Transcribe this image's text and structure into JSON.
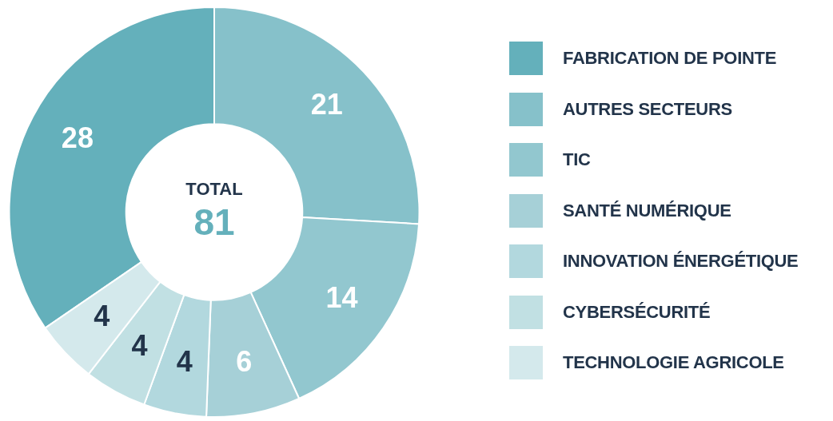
{
  "chart_data": {
    "type": "donut",
    "categories": [
      "FABRICATION DE POINTE",
      "AUTRES SECTEURS",
      "TIC",
      "SANTÉ NUMÉRIQUE",
      "INNOVATION ÉNERGÉTIQUE",
      "CYBERSÉCURITÉ",
      "TECHNOLOGIE AGRICOLE"
    ],
    "values": [
      28,
      21,
      14,
      6,
      4,
      4,
      4
    ],
    "colors": [
      "#64b0bb",
      "#86c1ca",
      "#92c7cf",
      "#a6d0d7",
      "#b2d8de",
      "#c1e0e3",
      "#d4e9ec"
    ],
    "data_labels": true,
    "legend": "right",
    "annotations": [
      "TOTAL",
      "81"
    ]
  }
}
